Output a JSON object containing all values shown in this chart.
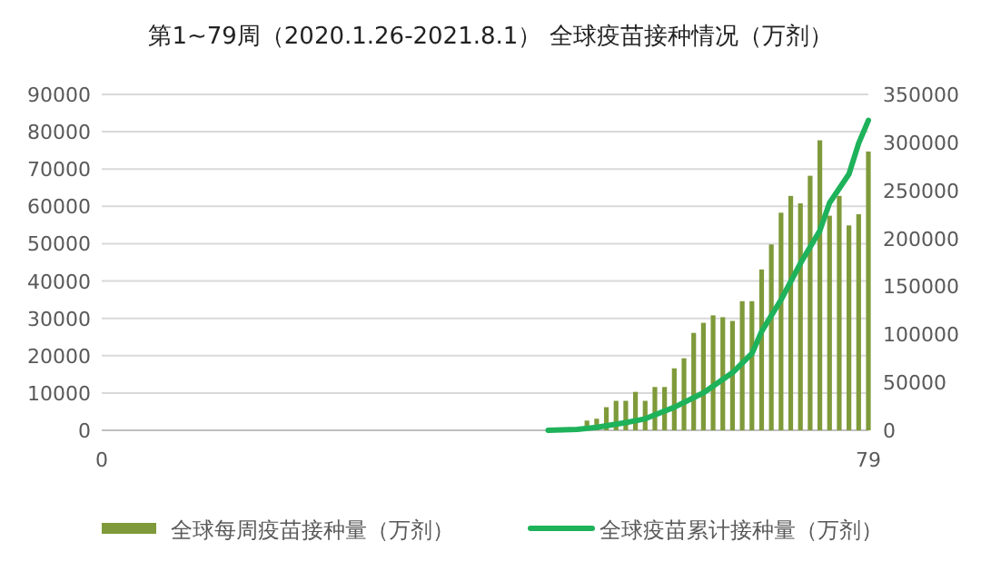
{
  "chart_data": {
    "type": "bar",
    "title": "第1~79周（2020.1.26-2021.8.1） 全球疫苗接种情况（万剂）",
    "xlim": [
      0,
      79
    ],
    "xticks": [
      0,
      79
    ],
    "ylim": [
      0,
      90000
    ],
    "yticks": [
      0,
      10000,
      20000,
      30000,
      40000,
      50000,
      60000,
      70000,
      80000,
      90000
    ],
    "y2lim": [
      0,
      350000
    ],
    "y2ticks": [
      0,
      50000,
      100000,
      150000,
      200000,
      250000,
      300000,
      350000
    ],
    "grid": "y",
    "legend": "bottom",
    "series": [
      {
        "name": "全球每周疫苗接种量（万剂）",
        "color": "#7f9a3a",
        "x": [
          50,
          51,
          52,
          53,
          54,
          55,
          56,
          57,
          58,
          59,
          60,
          61,
          62,
          63,
          64,
          65,
          66,
          67,
          68,
          69,
          70,
          71,
          72,
          73,
          74,
          75,
          76,
          77,
          78,
          79
        ],
        "values": [
          2600,
          3100,
          6200,
          7900,
          7900,
          10300,
          7900,
          11600,
          11600,
          16600,
          19300,
          26100,
          28800,
          30800,
          30300,
          29300,
          34600,
          34600,
          43100,
          49800,
          58300,
          62800,
          60800,
          68200,
          77700,
          57500,
          62800,
          54900,
          57900,
          74700
        ]
      },
      {
        "name": "全球疫苗累计接种量（万剂）",
        "type": "line",
        "axis": "y2",
        "color": "#1eb25a",
        "x": [
          46,
          49,
          51,
          54,
          56,
          59,
          62,
          65,
          67,
          68,
          70,
          72,
          74,
          75,
          77,
          78,
          79
        ],
        "values": [
          0,
          1000,
          3000,
          8000,
          12000,
          24000,
          39000,
          60000,
          80000,
          103000,
          136000,
          174000,
          208000,
          237000,
          267000,
          299000,
          323000
        ]
      }
    ]
  }
}
